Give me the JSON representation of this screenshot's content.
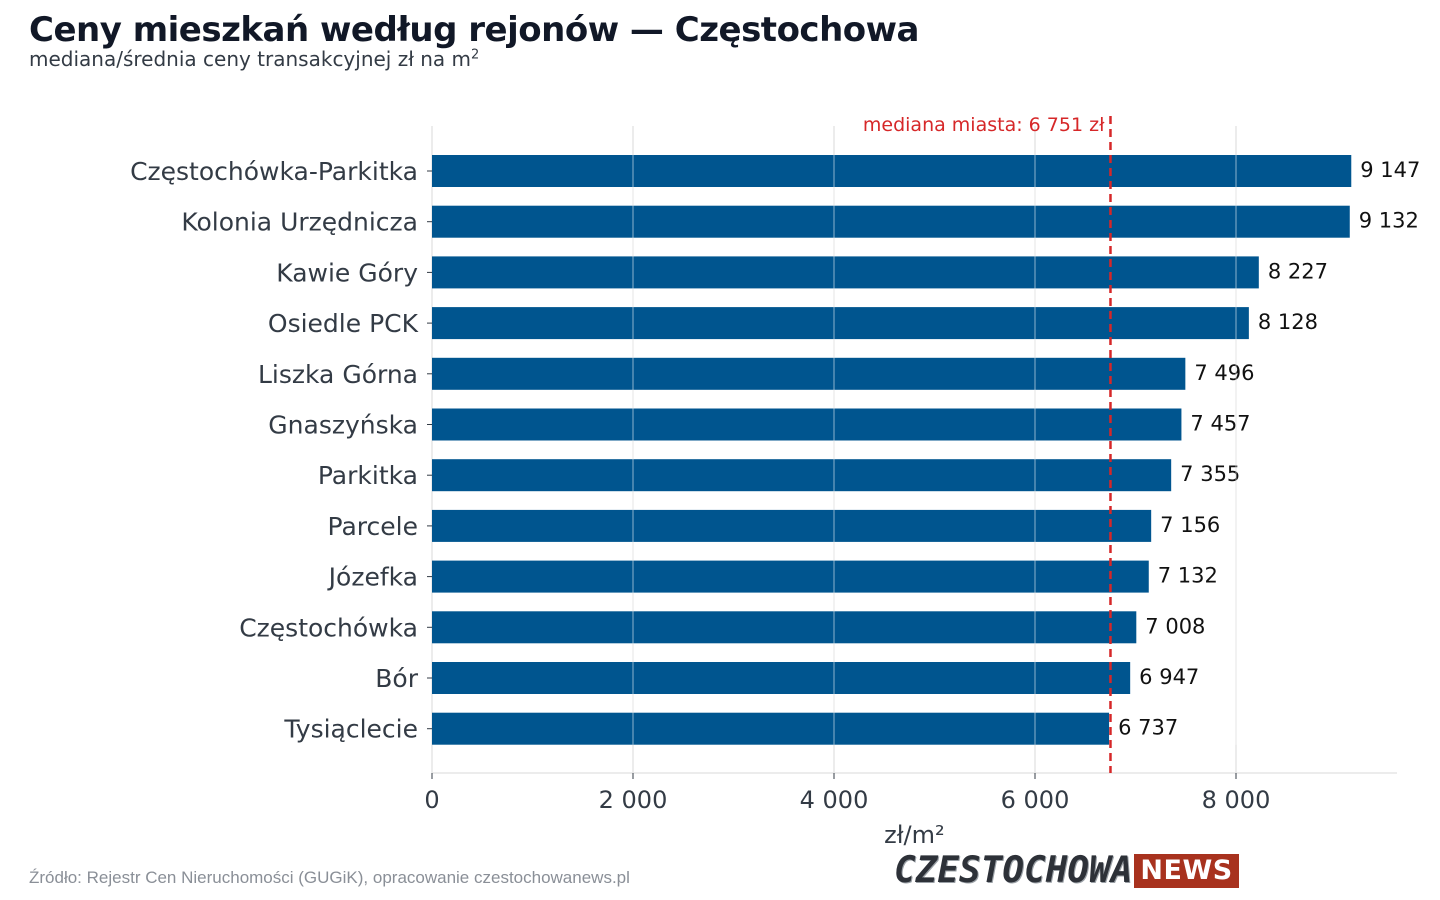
{
  "header": {
    "title": "Ceny mieszkań według rejonów — Częstochowa",
    "subtitle": "mediana/średnia ceny transakcyjnej zł na m",
    "subtitle_sup": "2"
  },
  "footer": {
    "source": "Źródło: Rejestr Cen Nieruchomości (GUGiK), opracowanie czestochowanews.pl",
    "logo_main": "CZESTOCHOWA",
    "logo_news": "NEWS"
  },
  "colors": {
    "bar": "#00558F",
    "median_line": "#d62728",
    "grid": "#e5e5e5",
    "axis_text": "#333b45"
  },
  "chart_data": {
    "type": "bar",
    "orientation": "horizontal",
    "categories": [
      "Częstochówka-Parkitka",
      "Kolonia Urzędnicza",
      "Kawie Góry",
      "Osiedle PCK",
      "Liszka Górna",
      "Gnaszyńska",
      "Parkitka",
      "Parcele",
      "Józefka",
      "Częstochówka",
      "Bór",
      "Tysiąclecie"
    ],
    "values": [
      9147,
      9132,
      8227,
      8128,
      7496,
      7457,
      7355,
      7156,
      7132,
      7008,
      6947,
      6737
    ],
    "value_labels": [
      "9 147",
      "9 132",
      "8 227",
      "8 128",
      "7 496",
      "7 457",
      "7 355",
      "7 156",
      "7 132",
      "7 008",
      "6 947",
      "6 737"
    ],
    "xlabel": "zł/m²",
    "xlim": [
      0,
      9600
    ],
    "xticks": [
      0,
      2000,
      4000,
      6000,
      8000
    ],
    "xtick_labels": [
      "0",
      "2 000",
      "4 000",
      "6 000",
      "8 000"
    ],
    "grid": true,
    "reference_line": {
      "value": 6751,
      "label": "mediana miasta: 6 751 zł",
      "style": "dashed"
    }
  }
}
